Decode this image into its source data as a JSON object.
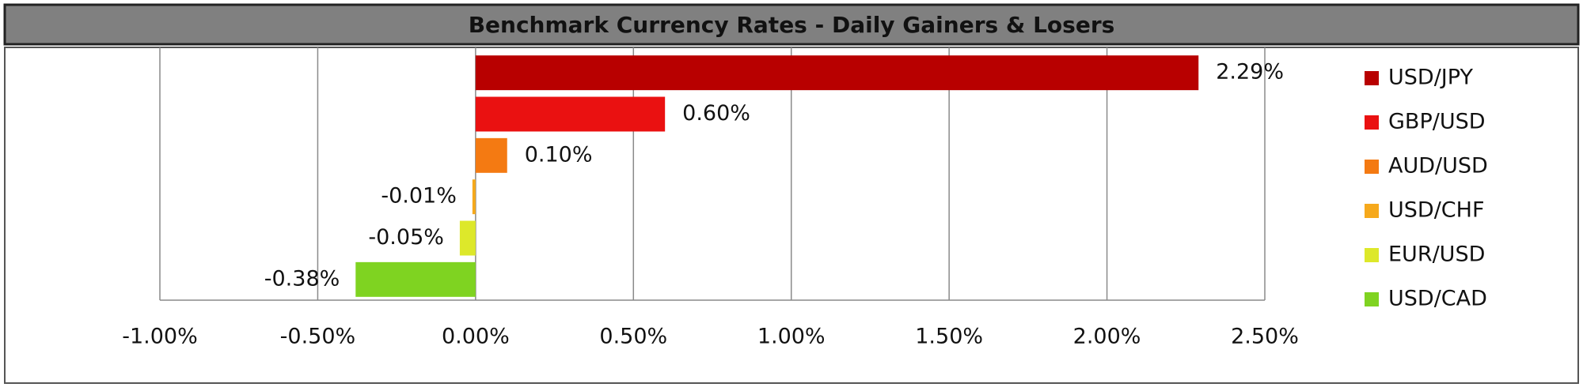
{
  "chart_data": {
    "type": "hbar",
    "title": "Benchmark Currency Rates - Daily Gainers & Losers",
    "series": [
      {
        "name": "USD/JPY",
        "color": "#b80000",
        "values": [
          2.29
        ],
        "value_labels": [
          "2.29%"
        ]
      },
      {
        "name": "GBP/USD",
        "color": "#ea1111",
        "values": [
          0.6
        ],
        "value_labels": [
          "0.60%"
        ]
      },
      {
        "name": "AUD/USD",
        "color": "#f47a12",
        "values": [
          0.1
        ],
        "value_labels": [
          "0.10%"
        ]
      },
      {
        "name": "USD/CHF",
        "color": "#f6a91c",
        "values": [
          -0.01
        ],
        "value_labels": [
          "-0.01%"
        ]
      },
      {
        "name": "EUR/USD",
        "color": "#dde82a",
        "values": [
          -0.05
        ],
        "value_labels": [
          "-0.05%"
        ]
      },
      {
        "name": "USD/CAD",
        "color": "#7fd321",
        "values": [
          -0.38
        ],
        "value_labels": [
          "-0.38%"
        ]
      }
    ],
    "xlim": [
      -1,
      2.5
    ],
    "xticks": [
      {
        "value": -1,
        "label": "-1.00%"
      },
      {
        "value": -0.5,
        "label": "-0.50%"
      },
      {
        "value": 0,
        "label": "0.00%"
      },
      {
        "value": 0.5,
        "label": "0.50%"
      },
      {
        "value": 1,
        "label": "1.00%"
      },
      {
        "value": 1.5,
        "label": "1.50%"
      },
      {
        "value": 2,
        "label": "2.00%"
      },
      {
        "value": 2.5,
        "label": "2.50%"
      }
    ],
    "grid": true,
    "legend": "right"
  }
}
